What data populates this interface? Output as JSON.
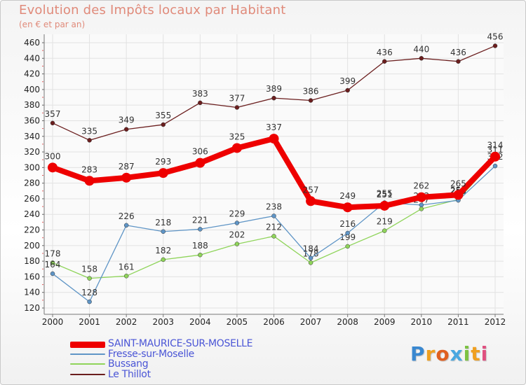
{
  "chart_data": {
    "type": "line",
    "title": "Evolution des Impôts locaux par Habitant",
    "subtitle": "(en € et par an)",
    "categories": [
      "2000",
      "2001",
      "2002",
      "2003",
      "2004",
      "2005",
      "2006",
      "2007",
      "2008",
      "2009",
      "2010",
      "2011",
      "2012"
    ],
    "ylim": [
      120,
      460
    ],
    "yticks": [
      120,
      140,
      160,
      180,
      200,
      220,
      240,
      260,
      280,
      300,
      320,
      340,
      360,
      380,
      400,
      420,
      440,
      460
    ],
    "grid": true,
    "legend_position": "bottom-left",
    "series": [
      {
        "name": "Le Thillot",
        "color": "#6b1e1e",
        "values": [
          357,
          335,
          349,
          355,
          383,
          377,
          389,
          386,
          399,
          436,
          440,
          436,
          456
        ]
      },
      {
        "name": "Bussang",
        "color": "#8fd45a",
        "values": [
          178,
          158,
          161,
          182,
          188,
          202,
          212,
          178,
          199,
          219,
          247,
          259,
          311
        ]
      },
      {
        "name": "Fresse-sur-Moselle",
        "color": "#5f95c6",
        "values": [
          164,
          128,
          226,
          218,
          221,
          229,
          238,
          184,
          216,
          255,
          252,
          258,
          302
        ]
      },
      {
        "name": "SAINT-MAURICE-SUR-MOSELLE",
        "color": "#ee0000",
        "values": [
          300,
          283,
          287,
          293,
          306,
          325,
          337,
          257,
          249,
          251,
          262,
          265,
          314
        ]
      }
    ],
    "legend_order": [
      "SAINT-MAURICE-SUR-MOSELLE",
      "Fresse-sur-Moselle",
      "Bussang",
      "Le Thillot"
    ]
  },
  "logo": {
    "letters": [
      "P",
      "r",
      "o",
      "x",
      "i",
      "t",
      "i"
    ],
    "colors": [
      "#3a88d0",
      "#f0a020",
      "#e06020",
      "#49a8e0",
      "#7cc242",
      "#f0a020",
      "#e05080"
    ]
  }
}
